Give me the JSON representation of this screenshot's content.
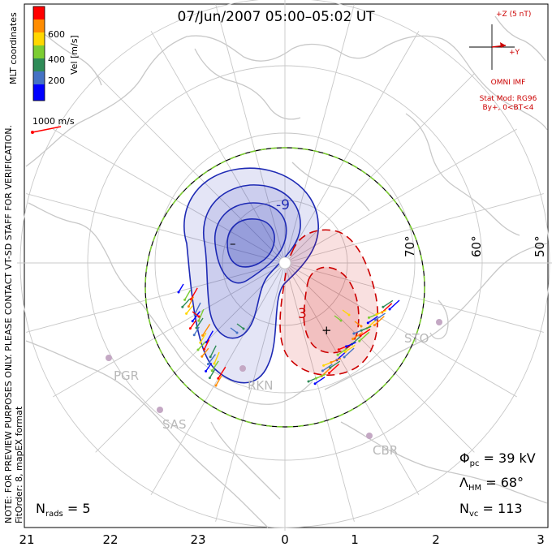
{
  "title": "07/Jun/2007 05:00–05:02 UT",
  "colorbar": {
    "label": "Vel [m/s]",
    "ticks": [
      "600",
      "400",
      "200"
    ],
    "colors": [
      "#0000ff",
      "#4472c4",
      "#2e8b57",
      "#7ccd32",
      "#ffd700",
      "#ff8c00",
      "#ff0000"
    ]
  },
  "coord_label": "MLT coordinates",
  "scale_vector": "1000 m/s",
  "notice": "NOTE: FOR PREVIEW PURPOSES ONLY. PLEASE CONTACT VT-SD STAFF FOR VERIFICATION.",
  "fit_info": "FitOrder: 8, mapEX format",
  "imf": {
    "z_label": "+Z (5 nT)",
    "y_label": "+Y",
    "source": "OMNI IMF",
    "model": "Stat Mod: RG96",
    "condition": "By+, 0<BT<4"
  },
  "latitude_labels": [
    "70°",
    "60°",
    "50°"
  ],
  "mlt_labels": [
    "21",
    "22",
    "23",
    "0",
    "1",
    "2",
    "3"
  ],
  "stations": [
    "PGR",
    "SAS",
    "RKN",
    "STO",
    "CBR"
  ],
  "potential": {
    "min_marker": "–",
    "max_marker": "+",
    "neg_label": "-9",
    "pos_label": "3"
  },
  "stats": {
    "phi_sym": "Φ",
    "phi_sub": "pc",
    "phi_val": " = 39 kV",
    "lam_sym": "Λ",
    "lam_sub": "HM",
    "lam_val": " = 68°",
    "nvc_sym": "N",
    "nvc_sub": "vc",
    "nvc_val": " = 113",
    "nrads_sym": "N",
    "nrads_sub": "rads",
    "nrads_val": " = 5"
  },
  "colors": {
    "negative_cell": "#1e2ab4",
    "positive_cell": "#cc0000",
    "hmb": "#7ccd32",
    "coast": "#c8c8c8",
    "grid": "#c8c8c8",
    "site": "#c4a8c4"
  }
}
